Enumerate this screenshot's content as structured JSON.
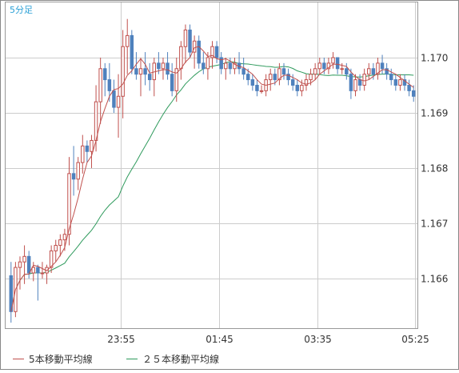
{
  "chart_data": {
    "type": "candlestick",
    "timeframe_label": "5分足",
    "x_tick_labels": [
      "23:55",
      "01:45",
      "03:35",
      "05:25"
    ],
    "y_tick_labels": [
      "1.170",
      "1.169",
      "1.168",
      "1.167",
      "1.166"
    ],
    "ylim": [
      1.1651,
      1.171
    ],
    "grid": true,
    "legend_position": "bottom-left",
    "series": [
      {
        "name": "5本移動平均線",
        "color": "#c0504d"
      },
      {
        "name": "２５本移動平均線",
        "color": "#2e9a5c"
      }
    ],
    "colors": {
      "up_candle": "#c0504d",
      "down_candle": "#4f81bd",
      "grid": "#cccccc",
      "label_blue": "#2aa0d6"
    },
    "candles": [
      [
        1.16605,
        1.1663,
        1.1652,
        1.1654
      ],
      [
        1.1654,
        1.1663,
        1.1653,
        1.1662
      ],
      [
        1.1662,
        1.1664,
        1.1658,
        1.1663
      ],
      [
        1.1663,
        1.1666,
        1.1659,
        1.1664
      ],
      [
        1.1664,
        1.1665,
        1.166,
        1.1661
      ],
      [
        1.1661,
        1.1663,
        1.16595,
        1.1662
      ],
      [
        1.1662,
        1.16625,
        1.1656,
        1.1661
      ],
      [
        1.1661,
        1.1663,
        1.166,
        1.1661
      ],
      [
        1.1661,
        1.16625,
        1.1659,
        1.1662
      ],
      [
        1.1662,
        1.1666,
        1.1661,
        1.1665
      ],
      [
        1.1665,
        1.1667,
        1.1663,
        1.1666
      ],
      [
        1.1666,
        1.1668,
        1.1664,
        1.1667
      ],
      [
        1.1667,
        1.1669,
        1.1665,
        1.1668
      ],
      [
        1.1668,
        1.1682,
        1.1666,
        1.1679
      ],
      [
        1.1679,
        1.1684,
        1.1675,
        1.1678
      ],
      [
        1.1678,
        1.1682,
        1.1676,
        1.1681
      ],
      [
        1.1681,
        1.1686,
        1.1679,
        1.1684
      ],
      [
        1.1684,
        1.1685,
        1.1681,
        1.1683
      ],
      [
        1.1683,
        1.1686,
        1.168,
        1.1685
      ],
      [
        1.1685,
        1.1695,
        1.1683,
        1.1692
      ],
      [
        1.1692,
        1.17,
        1.1688,
        1.1698
      ],
      [
        1.1698,
        1.1699,
        1.1693,
        1.1696
      ],
      [
        1.1696,
        1.1699,
        1.1692,
        1.1694
      ],
      [
        1.1694,
        1.1696,
        1.169,
        1.1691
      ],
      [
        1.1691,
        1.1697,
        1.16855,
        1.1693
      ],
      [
        1.1693,
        1.1705,
        1.1689,
        1.1702
      ],
      [
        1.1702,
        1.1707,
        1.1697,
        1.1704
      ],
      [
        1.1704,
        1.1705,
        1.1697,
        1.1698
      ],
      [
        1.1698,
        1.1701,
        1.1696,
        1.1697
      ],
      [
        1.1697,
        1.17,
        1.1693,
        1.1698
      ],
      [
        1.1698,
        1.1701,
        1.1695,
        1.1697
      ],
      [
        1.1697,
        1.1699,
        1.1694,
        1.1696
      ],
      [
        1.1696,
        1.17,
        1.1693,
        1.1699
      ],
      [
        1.1699,
        1.1701,
        1.1697,
        1.1698
      ],
      [
        1.1698,
        1.17,
        1.1696,
        1.1699
      ],
      [
        1.1699,
        1.1701,
        1.1696,
        1.1697
      ],
      [
        1.1697,
        1.1699,
        1.1693,
        1.1694
      ],
      [
        1.1694,
        1.17,
        1.1692,
        1.1698
      ],
      [
        1.1698,
        1.1703,
        1.1696,
        1.1702
      ],
      [
        1.1702,
        1.1706,
        1.1699,
        1.1705
      ],
      [
        1.1705,
        1.1706,
        1.17,
        1.1701
      ],
      [
        1.1701,
        1.1704,
        1.1698,
        1.1703
      ],
      [
        1.1703,
        1.1704,
        1.1698,
        1.1699
      ],
      [
        1.1699,
        1.1701,
        1.1697,
        1.1698
      ],
      [
        1.1698,
        1.1701,
        1.1696,
        1.17
      ],
      [
        1.17,
        1.1703,
        1.1698,
        1.1702
      ],
      [
        1.1702,
        1.1703,
        1.1699,
        1.17
      ],
      [
        1.17,
        1.1701,
        1.1697,
        1.1698
      ],
      [
        1.1698,
        1.17,
        1.1696,
        1.1699
      ],
      [
        1.1699,
        1.17,
        1.1697,
        1.1698
      ],
      [
        1.1698,
        1.17,
        1.1697,
        1.1699
      ],
      [
        1.1699,
        1.1701,
        1.1697,
        1.1698
      ],
      [
        1.1698,
        1.17,
        1.1696,
        1.1697
      ],
      [
        1.1697,
        1.1698,
        1.1695,
        1.1696
      ],
      [
        1.1696,
        1.1697,
        1.1694,
        1.1695
      ],
      [
        1.1695,
        1.1696,
        1.1693,
        1.1694
      ],
      [
        1.1694,
        1.1695,
        1.16935,
        1.1694
      ],
      [
        1.1694,
        1.1697,
        1.1693,
        1.1696
      ],
      [
        1.1696,
        1.1698,
        1.1694,
        1.1697
      ],
      [
        1.1697,
        1.1698,
        1.1695,
        1.1696
      ],
      [
        1.1696,
        1.1699,
        1.1695,
        1.1698
      ],
      [
        1.1698,
        1.1699,
        1.1696,
        1.1697
      ],
      [
        1.1697,
        1.1698,
        1.1695,
        1.1696
      ],
      [
        1.1696,
        1.1697,
        1.1694,
        1.1695
      ],
      [
        1.1695,
        1.1696,
        1.1693,
        1.1694
      ],
      [
        1.1694,
        1.1696,
        1.1693,
        1.1695
      ],
      [
        1.1695,
        1.1697,
        1.1694,
        1.1696
      ],
      [
        1.1696,
        1.1698,
        1.1695,
        1.1697
      ],
      [
        1.1697,
        1.1699,
        1.1696,
        1.1698
      ],
      [
        1.1698,
        1.17,
        1.1697,
        1.1699
      ],
      [
        1.1699,
        1.17,
        1.1697,
        1.1698
      ],
      [
        1.1698,
        1.17,
        1.1697,
        1.1699
      ],
      [
        1.1699,
        1.1701,
        1.1698,
        1.17
      ],
      [
        1.17,
        1.17,
        1.1697,
        1.1698
      ],
      [
        1.1698,
        1.1699,
        1.1697,
        1.1698
      ],
      [
        1.1698,
        1.1699,
        1.1696,
        1.1697
      ],
      [
        1.1697,
        1.1698,
        1.16925,
        1.1694
      ],
      [
        1.1694,
        1.1697,
        1.1693,
        1.1696
      ],
      [
        1.1696,
        1.1697,
        1.1694,
        1.1695
      ],
      [
        1.1695,
        1.1698,
        1.1694,
        1.1697
      ],
      [
        1.1697,
        1.1699,
        1.1696,
        1.1698
      ],
      [
        1.1698,
        1.1699,
        1.1696,
        1.1697
      ],
      [
        1.1697,
        1.17,
        1.1696,
        1.1699
      ],
      [
        1.1699,
        1.17005,
        1.1697,
        1.1698
      ],
      [
        1.1698,
        1.1699,
        1.1696,
        1.1697
      ],
      [
        1.1697,
        1.1698,
        1.1695,
        1.1696
      ],
      [
        1.1696,
        1.1697,
        1.1694,
        1.1695
      ],
      [
        1.1695,
        1.1697,
        1.1694,
        1.1696
      ],
      [
        1.1696,
        1.1697,
        1.1694,
        1.1695
      ],
      [
        1.1695,
        1.1696,
        1.1693,
        1.1694
      ],
      [
        1.1694,
        1.1695,
        1.1692,
        1.1693
      ]
    ]
  }
}
